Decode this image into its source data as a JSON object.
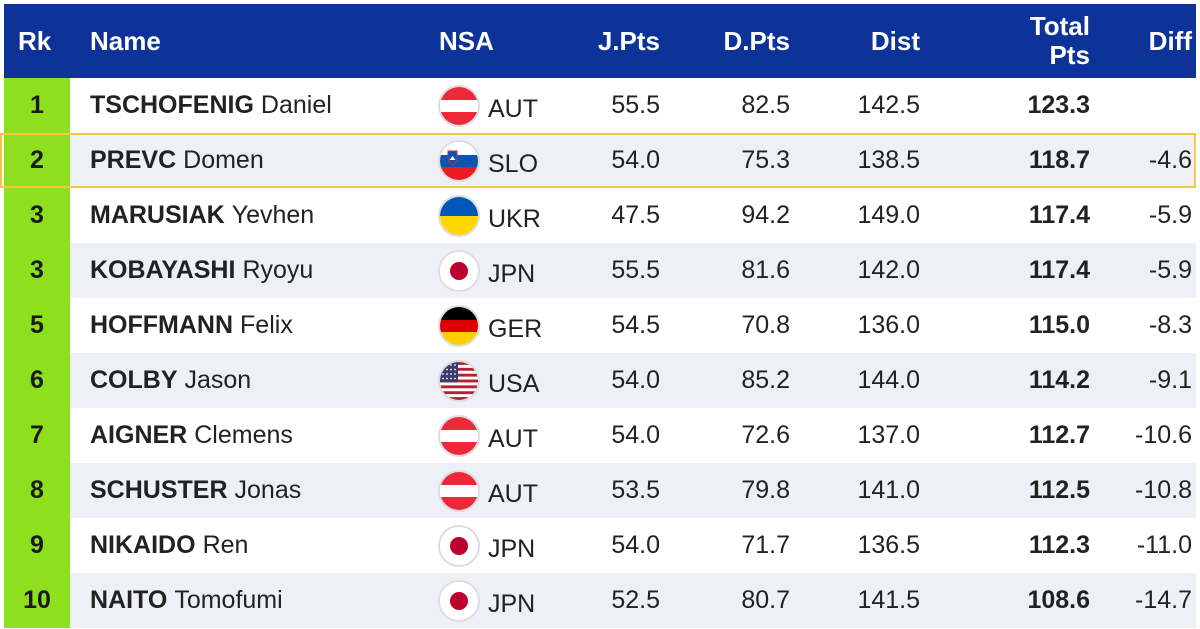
{
  "header": {
    "rk": "Rk",
    "name": "Name",
    "nsa": "NSA",
    "jpts": "J.Pts",
    "dpts": "D.Pts",
    "dist": "Dist",
    "total_line1": "Total",
    "total_line2": "Pts",
    "diff": "Diff"
  },
  "colors": {
    "header_bg": "#0d3399",
    "rank_bg": "#8ee01f",
    "highlight_border": "#f0c84a"
  },
  "rows": [
    {
      "rk": "1",
      "last": "TSCHOFENIG",
      "first": "Daniel",
      "flag": "aut-flag-icon",
      "nsa": "AUT",
      "jpts": "55.5",
      "dpts": "82.5",
      "dist": "142.5",
      "total": "123.3",
      "diff": ""
    },
    {
      "rk": "2",
      "last": "PREVC",
      "first": "Domen",
      "flag": "slo-flag-icon",
      "nsa": "SLO",
      "jpts": "54.0",
      "dpts": "75.3",
      "dist": "138.5",
      "total": "118.7",
      "diff": "-4.6"
    },
    {
      "rk": "3",
      "last": "MARUSIAK",
      "first": "Yevhen",
      "flag": "ukr-flag-icon",
      "nsa": "UKR",
      "jpts": "47.5",
      "dpts": "94.2",
      "dist": "149.0",
      "total": "117.4",
      "diff": "-5.9"
    },
    {
      "rk": "3",
      "last": "KOBAYASHI",
      "first": "Ryoyu",
      "flag": "jpn-flag-icon",
      "nsa": "JPN",
      "jpts": "55.5",
      "dpts": "81.6",
      "dist": "142.0",
      "total": "117.4",
      "diff": "-5.9"
    },
    {
      "rk": "5",
      "last": "HOFFMANN",
      "first": "Felix",
      "flag": "ger-flag-icon",
      "nsa": "GER",
      "jpts": "54.5",
      "dpts": "70.8",
      "dist": "136.0",
      "total": "115.0",
      "diff": "-8.3"
    },
    {
      "rk": "6",
      "last": "COLBY",
      "first": "Jason",
      "flag": "usa-flag-icon",
      "nsa": "USA",
      "jpts": "54.0",
      "dpts": "85.2",
      "dist": "144.0",
      "total": "114.2",
      "diff": "-9.1"
    },
    {
      "rk": "7",
      "last": "AIGNER",
      "first": "Clemens",
      "flag": "aut-flag-icon",
      "nsa": "AUT",
      "jpts": "54.0",
      "dpts": "72.6",
      "dist": "137.0",
      "total": "112.7",
      "diff": "-10.6"
    },
    {
      "rk": "8",
      "last": "SCHUSTER",
      "first": "Jonas",
      "flag": "aut-flag-icon",
      "nsa": "AUT",
      "jpts": "53.5",
      "dpts": "79.8",
      "dist": "141.0",
      "total": "112.5",
      "diff": "-10.8"
    },
    {
      "rk": "9",
      "last": "NIKAIDO",
      "first": "Ren",
      "flag": "jpn-flag-icon",
      "nsa": "JPN",
      "jpts": "54.0",
      "dpts": "71.7",
      "dist": "136.5",
      "total": "112.3",
      "diff": "-11.0"
    },
    {
      "rk": "10",
      "last": "NAITO",
      "first": "Tomofumi",
      "flag": "jpn-flag-icon",
      "nsa": "JPN",
      "jpts": "52.5",
      "dpts": "80.7",
      "dist": "141.5",
      "total": "108.6",
      "diff": "-14.7"
    }
  ],
  "highlighted_row": 1
}
